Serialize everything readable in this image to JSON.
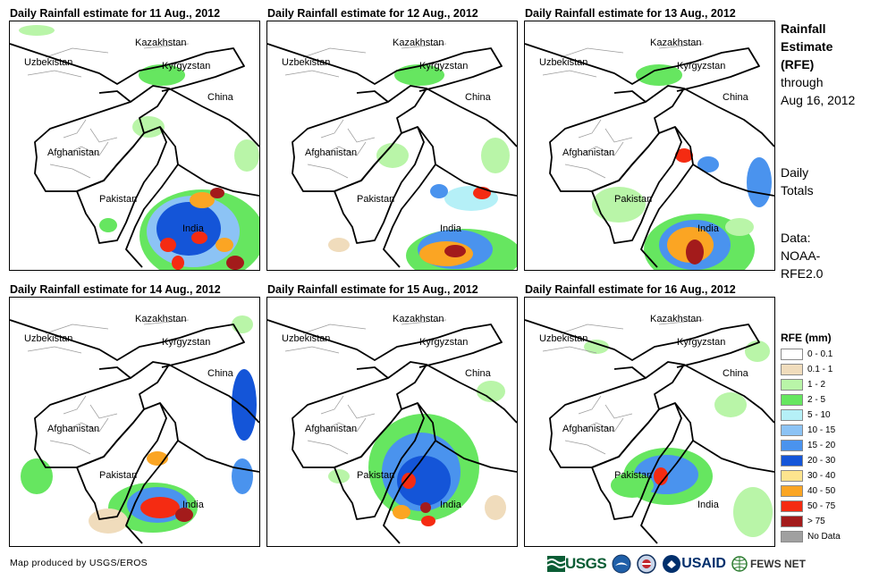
{
  "panels": [
    {
      "title": "Daily Rainfall estimate for 11 Aug., 2012",
      "day": 11
    },
    {
      "title": "Daily Rainfall estimate for 12 Aug., 2012",
      "day": 12
    },
    {
      "title": "Daily Rainfall estimate for 13 Aug., 2012",
      "day": 13
    },
    {
      "title": "Daily Rainfall estimate for 14 Aug., 2012",
      "day": 14
    },
    {
      "title": "Daily Rainfall estimate for 15 Aug., 2012",
      "day": 15
    },
    {
      "title": "Daily Rainfall estimate for 16 Aug., 2012",
      "day": 16
    }
  ],
  "countries": {
    "kazakhstan": "Kazakhstan",
    "uzbekistan": "Uzbekistan",
    "kyrgyzstan": "Kyrgyzstan",
    "china": "China",
    "afghanistan": "Afghanistan",
    "pakistan": "Pakistan",
    "india": "India"
  },
  "side": {
    "title_line1": "Rainfall",
    "title_line2": "Estimate",
    "title_line3": "(RFE)",
    "through_line1": "through",
    "through_line2": "Aug 16, 2012",
    "daily_line1": "Daily",
    "daily_line2": "Totals",
    "data_line1": "Data:",
    "data_line2": "NOAA-",
    "data_line3": "RFE2.0"
  },
  "legend": {
    "title": "RFE (mm)",
    "items": [
      {
        "label": "0 - 0.1",
        "color": "#ffffff"
      },
      {
        "label": "0.1 - 1",
        "color": "#f0dcbc"
      },
      {
        "label": "1 - 2",
        "color": "#b9f5a8"
      },
      {
        "label": "2 - 5",
        "color": "#66e660"
      },
      {
        "label": "5 - 10",
        "color": "#b5f0f7"
      },
      {
        "label": "10 - 15",
        "color": "#8cc3f5"
      },
      {
        "label": "15 - 20",
        "color": "#4a93ee"
      },
      {
        "label": "20 - 30",
        "color": "#1455d8"
      },
      {
        "label": "30 - 40",
        "color": "#fde48e"
      },
      {
        "label": "40 - 50",
        "color": "#fba523"
      },
      {
        "label": "50 - 75",
        "color": "#f52b12"
      },
      {
        "label": "> 75",
        "color": "#a31b1b"
      },
      {
        "label": "No Data",
        "color": "#a0a0a0"
      }
    ]
  },
  "credit": "Map produced by USGS/EROS",
  "logos": {
    "usgs": "USGS",
    "usaid": "USAID",
    "fews": "FEWS NET",
    "colors": {
      "usgs": "#0b5d35",
      "usaid": "#002f6c",
      "noaa": "#1f5fa8"
    }
  }
}
